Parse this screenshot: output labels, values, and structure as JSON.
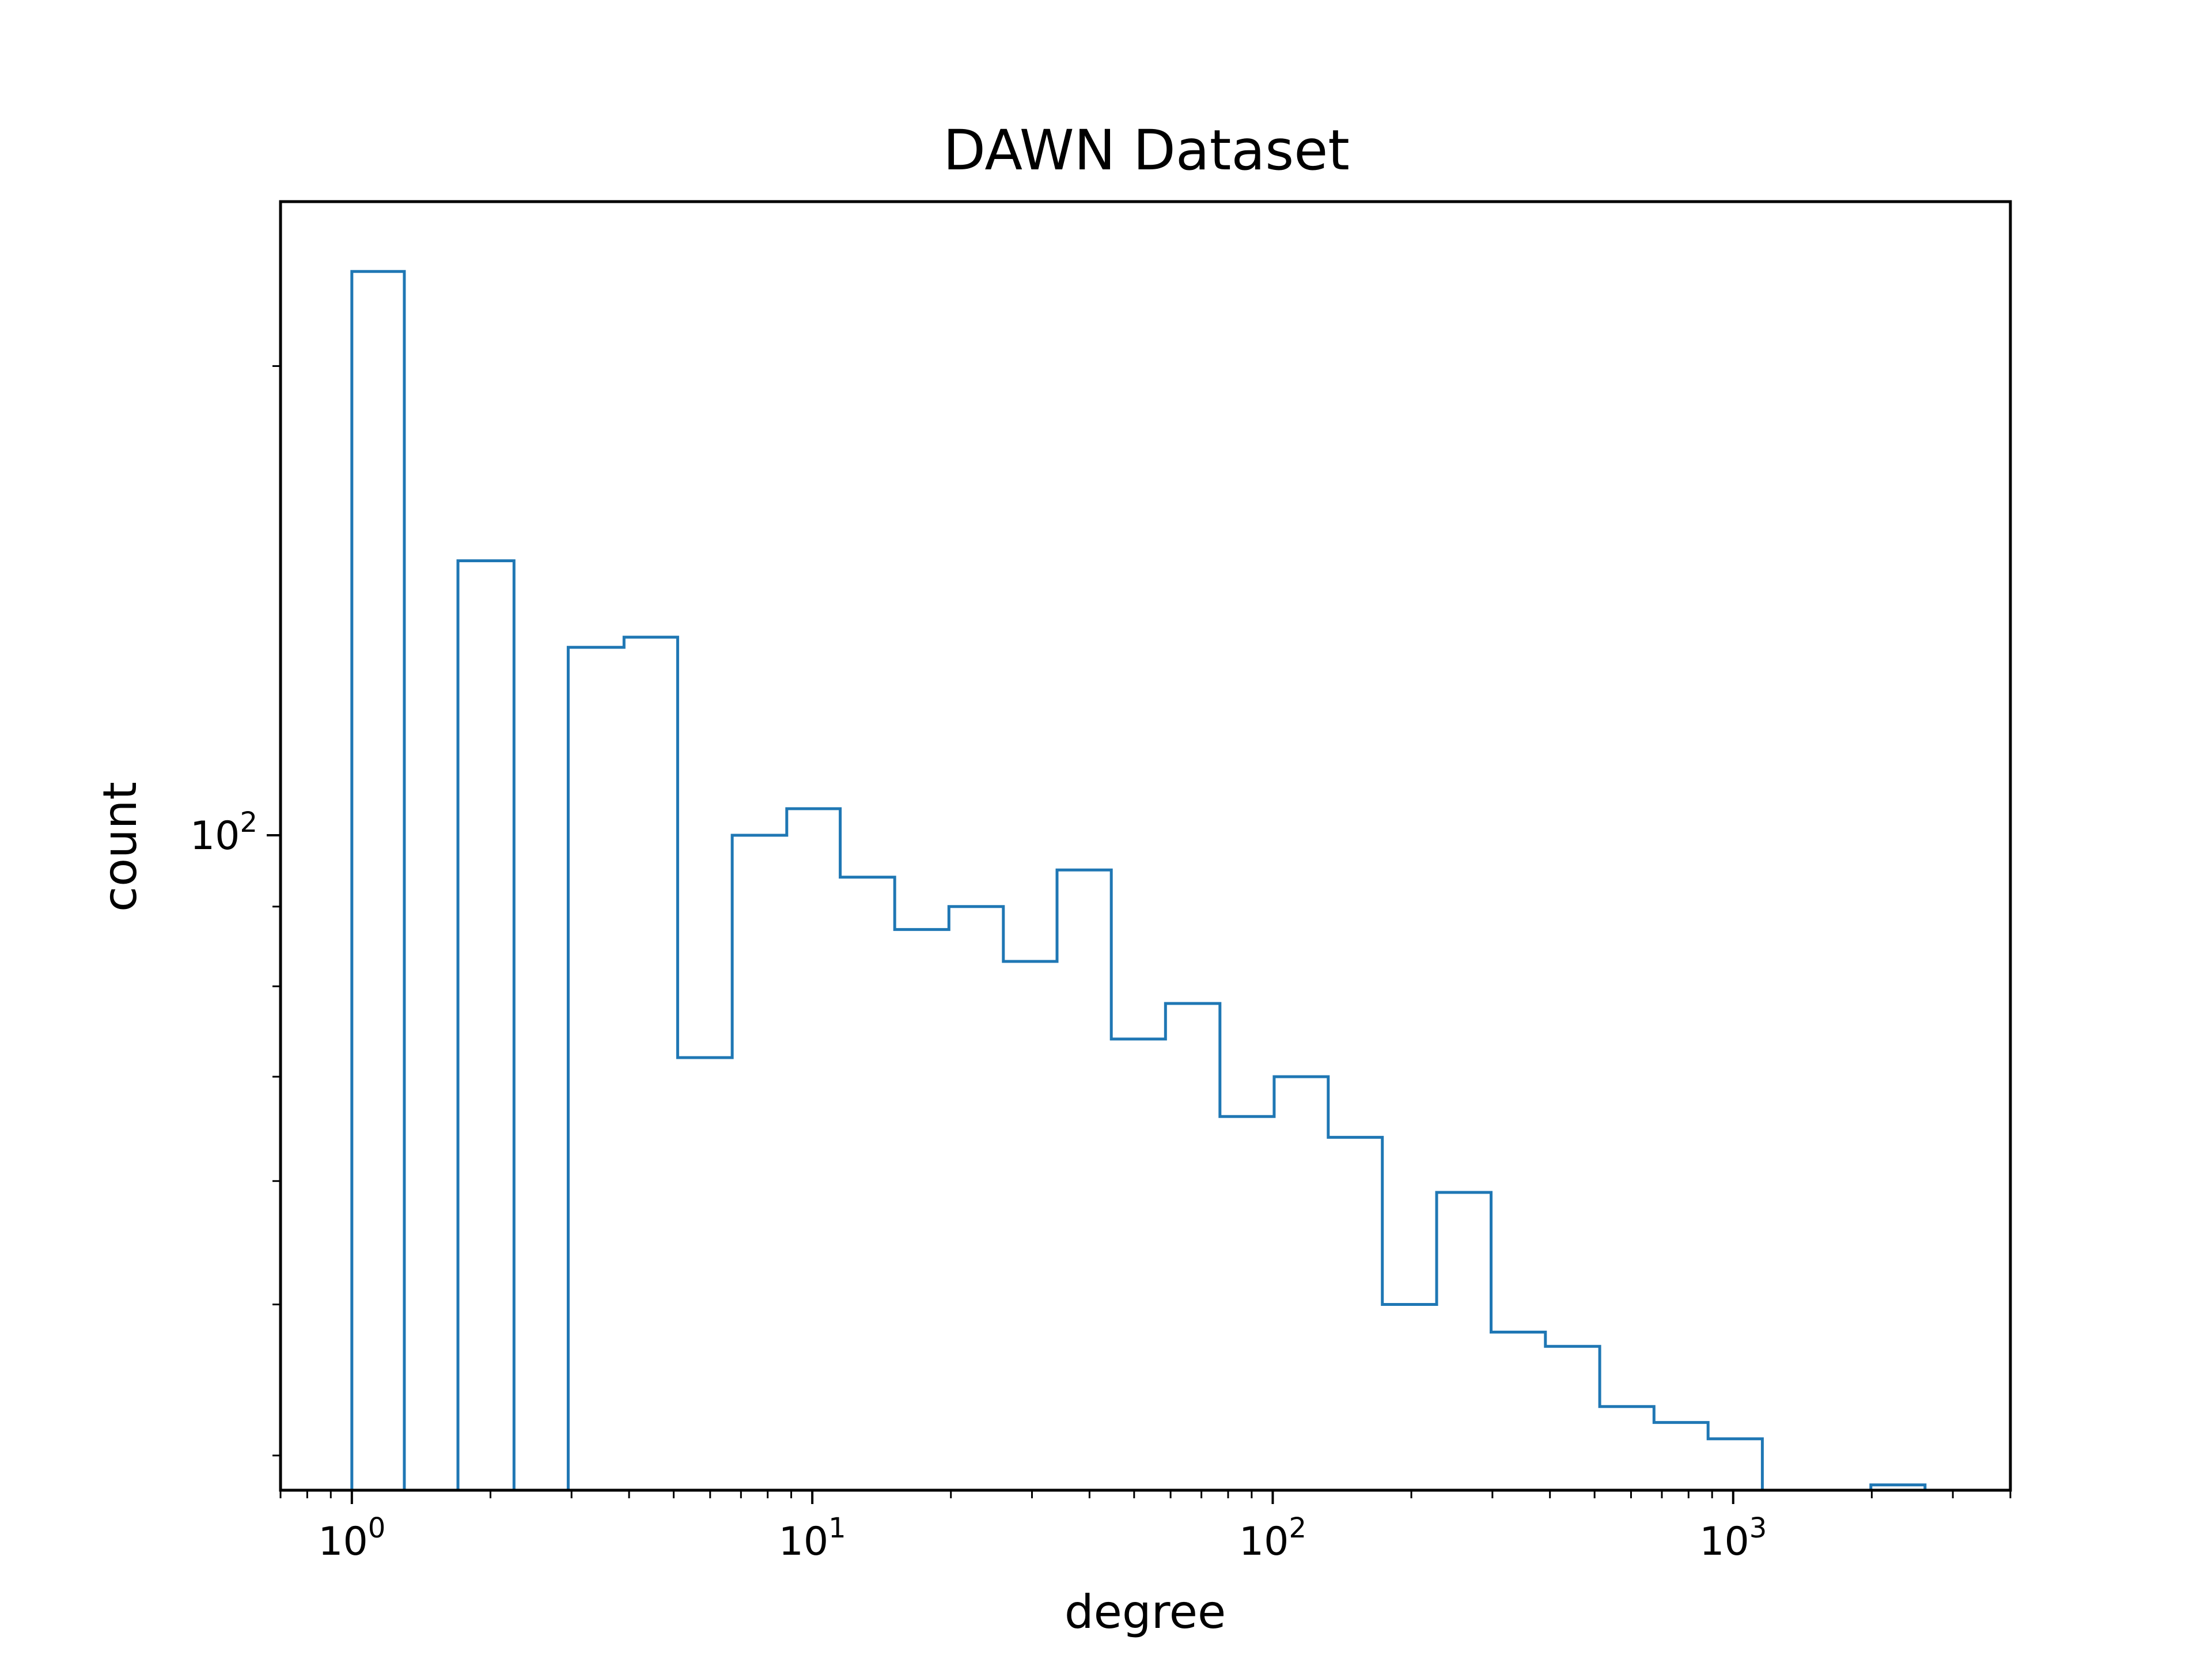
{
  "chart_data": {
    "type": "histogram",
    "title": "DAWN Dataset",
    "xlabel": "degree",
    "ylabel": "count",
    "xscale": "log",
    "yscale": "log",
    "xlim": [
      0.7,
      4000
    ],
    "ylim": [
      38,
      255
    ],
    "grid": false,
    "histtype": "step",
    "color": "#1f77b4",
    "x_ticks": [
      {
        "value": 1,
        "base": "10",
        "exp": "0"
      },
      {
        "value": 10,
        "base": "10",
        "exp": "1"
      },
      {
        "value": 100,
        "base": "10",
        "exp": "2"
      },
      {
        "value": 1000,
        "base": "10",
        "exp": "3"
      }
    ],
    "y_ticks": [
      {
        "value": 100,
        "base": "10",
        "exp": "2"
      }
    ],
    "bins": [
      {
        "x0": 1.0,
        "x1": 1.3,
        "count": 230
      },
      {
        "x0": 1.3,
        "x1": 1.7,
        "count": 0
      },
      {
        "x0": 1.7,
        "x1": 2.25,
        "count": 150
      },
      {
        "x0": 2.25,
        "x1": 2.95,
        "count": 0
      },
      {
        "x0": 2.95,
        "x1": 3.9,
        "count": 132
      },
      {
        "x0": 3.9,
        "x1": 5.1,
        "count": 134
      },
      {
        "x0": 5.1,
        "x1": 6.7,
        "count": 72
      },
      {
        "x0": 6.7,
        "x1": 8.8,
        "count": 100
      },
      {
        "x0": 8.8,
        "x1": 11.5,
        "count": 104
      },
      {
        "x0": 11.5,
        "x1": 15.1,
        "count": 94
      },
      {
        "x0": 15.1,
        "x1": 19.8,
        "count": 87
      },
      {
        "x0": 19.8,
        "x1": 26.0,
        "count": 90
      },
      {
        "x0": 26.0,
        "x1": 34.0,
        "count": 83
      },
      {
        "x0": 34.0,
        "x1": 44.6,
        "count": 95
      },
      {
        "x0": 44.6,
        "x1": 58.5,
        "count": 74
      },
      {
        "x0": 58.5,
        "x1": 76.8,
        "count": 78
      },
      {
        "x0": 76.8,
        "x1": 100.7,
        "count": 66
      },
      {
        "x0": 100.7,
        "x1": 132,
        "count": 70
      },
      {
        "x0": 132,
        "x1": 173,
        "count": 64
      },
      {
        "x0": 173,
        "x1": 227,
        "count": 50
      },
      {
        "x0": 227,
        "x1": 298,
        "count": 59
      },
      {
        "x0": 298,
        "x1": 391,
        "count": 48
      },
      {
        "x0": 391,
        "x1": 513,
        "count": 47
      },
      {
        "x0": 513,
        "x1": 673,
        "count": 43
      },
      {
        "x0": 673,
        "x1": 882,
        "count": 42
      },
      {
        "x0": 882,
        "x1": 1157,
        "count": 41
      },
      {
        "x0": 1157,
        "x1": 1518,
        "count": 37
      },
      {
        "x0": 1518,
        "x1": 1991,
        "count": 37.6
      },
      {
        "x0": 1991,
        "x1": 2610,
        "count": 38.3
      }
    ]
  }
}
